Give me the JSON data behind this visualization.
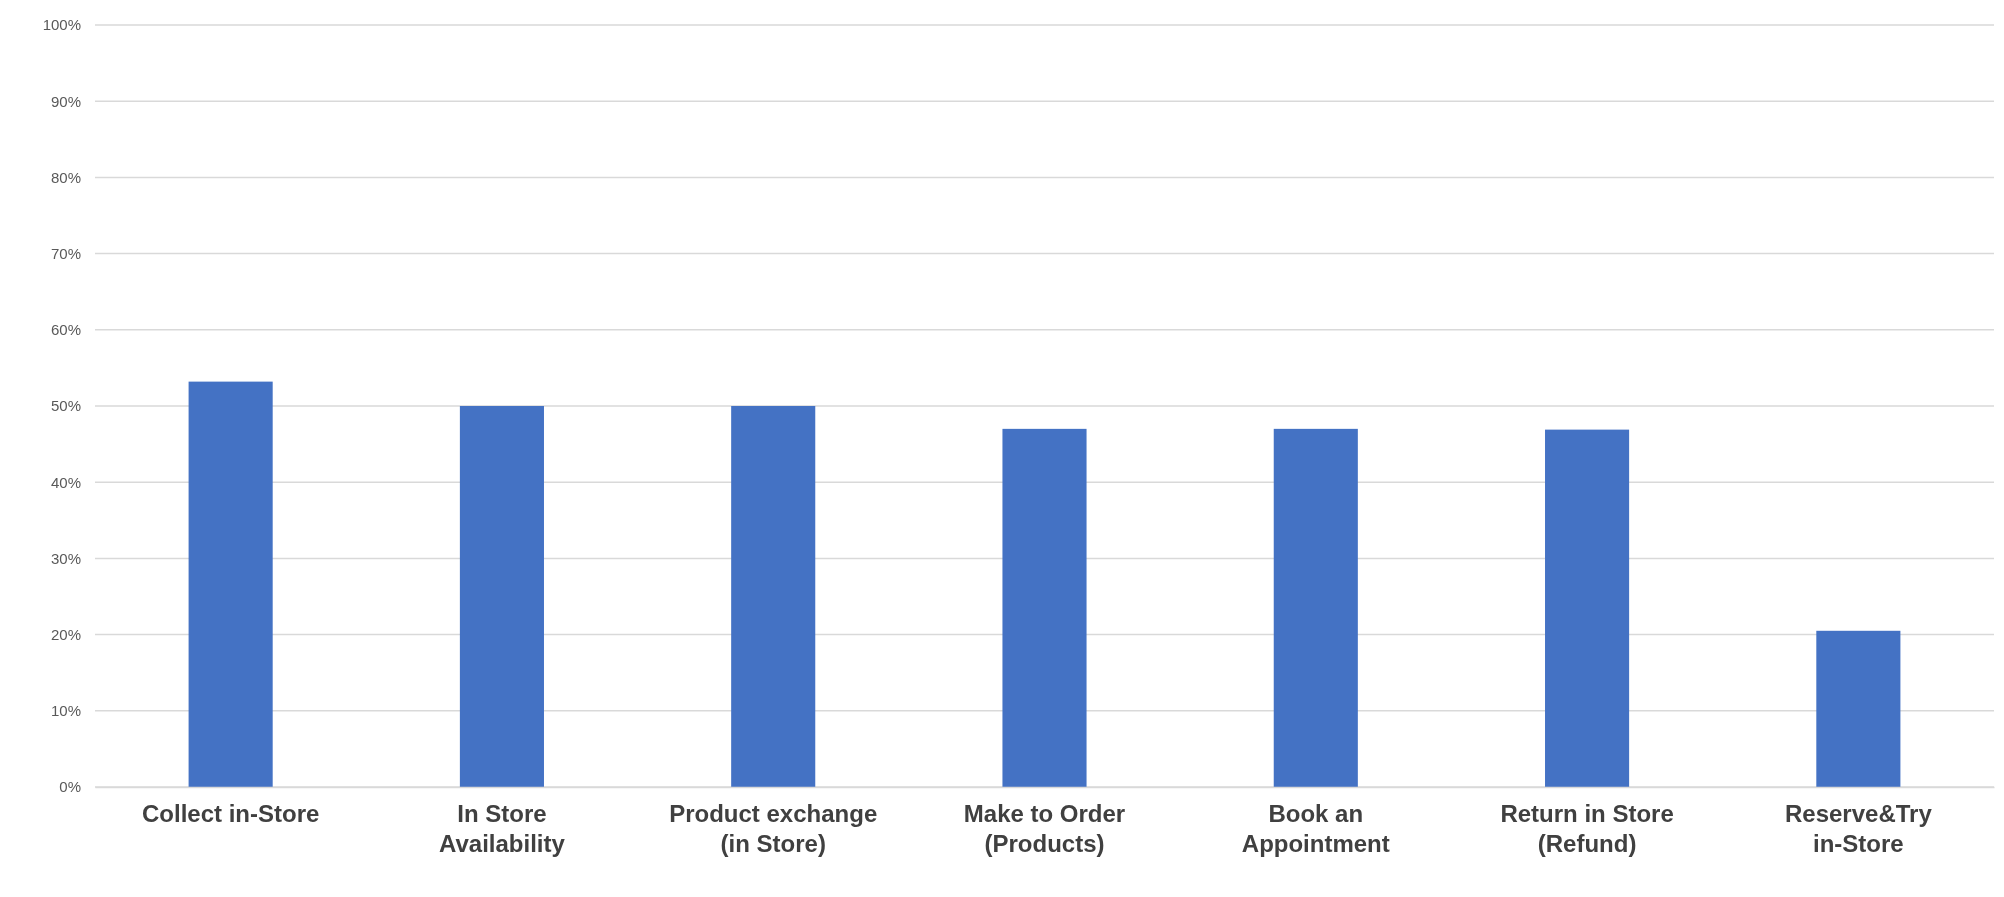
{
  "chart_data": {
    "type": "bar",
    "categories": [
      "Collect in-Store",
      "In Store Availability",
      "Product exchange (in Store)",
      "Make to Order (Products)",
      "Book an Appointment",
      "Return in Store (Refund)",
      "Reserve&Try in-Store"
    ],
    "values": [
      53.2,
      50,
      50,
      47,
      47,
      46.9,
      20.5
    ],
    "color": "#4472c4",
    "ylim": [
      0,
      100
    ],
    "yticks": [
      {
        "value": 0,
        "label": "0%"
      },
      {
        "value": 10,
        "label": "10%"
      },
      {
        "value": 20,
        "label": "20%"
      },
      {
        "value": 30,
        "label": "30%"
      },
      {
        "value": 40,
        "label": "40%"
      },
      {
        "value": 50,
        "label": "50%"
      },
      {
        "value": 60,
        "label": "60%"
      },
      {
        "value": 70,
        "label": "70%"
      },
      {
        "value": 80,
        "label": "80%"
      },
      {
        "value": 90,
        "label": "90%"
      },
      {
        "value": 100,
        "label": "100%"
      }
    ],
    "grid": "y"
  }
}
